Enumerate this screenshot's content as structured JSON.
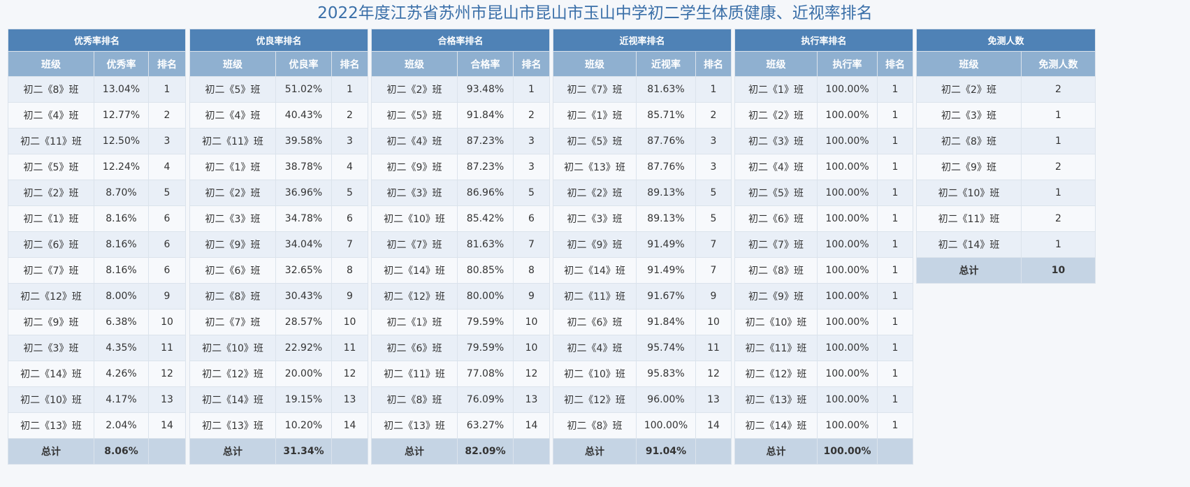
{
  "title": "2022年度江苏省苏州市昆山市昆山市玉山中学初二学生体质健康、近视率排名",
  "tables": [
    {
      "caption": "优秀率排名",
      "headers": [
        "班级",
        "优秀率",
        "排名"
      ],
      "rows": [
        [
          "初二《8》班",
          "13.04%",
          "1"
        ],
        [
          "初二《4》班",
          "12.77%",
          "2"
        ],
        [
          "初二《11》班",
          "12.50%",
          "3"
        ],
        [
          "初二《5》班",
          "12.24%",
          "4"
        ],
        [
          "初二《2》班",
          "8.70%",
          "5"
        ],
        [
          "初二《1》班",
          "8.16%",
          "6"
        ],
        [
          "初二《6》班",
          "8.16%",
          "6"
        ],
        [
          "初二《7》班",
          "8.16%",
          "6"
        ],
        [
          "初二《12》班",
          "8.00%",
          "9"
        ],
        [
          "初二《9》班",
          "6.38%",
          "10"
        ],
        [
          "初二《3》班",
          "4.35%",
          "11"
        ],
        [
          "初二《14》班",
          "4.26%",
          "12"
        ],
        [
          "初二《10》班",
          "4.17%",
          "13"
        ],
        [
          "初二《13》班",
          "2.04%",
          "14"
        ]
      ],
      "total": [
        "总计",
        "8.06%",
        ""
      ]
    },
    {
      "caption": "优良率排名",
      "headers": [
        "班级",
        "优良率",
        "排名"
      ],
      "rows": [
        [
          "初二《5》班",
          "51.02%",
          "1"
        ],
        [
          "初二《4》班",
          "40.43%",
          "2"
        ],
        [
          "初二《11》班",
          "39.58%",
          "3"
        ],
        [
          "初二《1》班",
          "38.78%",
          "4"
        ],
        [
          "初二《2》班",
          "36.96%",
          "5"
        ],
        [
          "初二《3》班",
          "34.78%",
          "6"
        ],
        [
          "初二《9》班",
          "34.04%",
          "7"
        ],
        [
          "初二《6》班",
          "32.65%",
          "8"
        ],
        [
          "初二《8》班",
          "30.43%",
          "9"
        ],
        [
          "初二《7》班",
          "28.57%",
          "10"
        ],
        [
          "初二《10》班",
          "22.92%",
          "11"
        ],
        [
          "初二《12》班",
          "20.00%",
          "12"
        ],
        [
          "初二《14》班",
          "19.15%",
          "13"
        ],
        [
          "初二《13》班",
          "10.20%",
          "14"
        ]
      ],
      "total": [
        "总计",
        "31.34%",
        ""
      ]
    },
    {
      "caption": "合格率排名",
      "headers": [
        "班级",
        "合格率",
        "排名"
      ],
      "rows": [
        [
          "初二《2》班",
          "93.48%",
          "1"
        ],
        [
          "初二《5》班",
          "91.84%",
          "2"
        ],
        [
          "初二《4》班",
          "87.23%",
          "3"
        ],
        [
          "初二《9》班",
          "87.23%",
          "3"
        ],
        [
          "初二《3》班",
          "86.96%",
          "5"
        ],
        [
          "初二《10》班",
          "85.42%",
          "6"
        ],
        [
          "初二《7》班",
          "81.63%",
          "7"
        ],
        [
          "初二《14》班",
          "80.85%",
          "8"
        ],
        [
          "初二《12》班",
          "80.00%",
          "9"
        ],
        [
          "初二《1》班",
          "79.59%",
          "10"
        ],
        [
          "初二《6》班",
          "79.59%",
          "10"
        ],
        [
          "初二《11》班",
          "77.08%",
          "12"
        ],
        [
          "初二《8》班",
          "76.09%",
          "13"
        ],
        [
          "初二《13》班",
          "63.27%",
          "14"
        ]
      ],
      "total": [
        "总计",
        "82.09%",
        ""
      ]
    },
    {
      "caption": "近视率排名",
      "headers": [
        "班级",
        "近视率",
        "排名"
      ],
      "rows": [
        [
          "初二《7》班",
          "81.63%",
          "1"
        ],
        [
          "初二《1》班",
          "85.71%",
          "2"
        ],
        [
          "初二《5》班",
          "87.76%",
          "3"
        ],
        [
          "初二《13》班",
          "87.76%",
          "3"
        ],
        [
          "初二《2》班",
          "89.13%",
          "5"
        ],
        [
          "初二《3》班",
          "89.13%",
          "5"
        ],
        [
          "初二《9》班",
          "91.49%",
          "7"
        ],
        [
          "初二《14》班",
          "91.49%",
          "7"
        ],
        [
          "初二《11》班",
          "91.67%",
          "9"
        ],
        [
          "初二《6》班",
          "91.84%",
          "10"
        ],
        [
          "初二《4》班",
          "95.74%",
          "11"
        ],
        [
          "初二《10》班",
          "95.83%",
          "12"
        ],
        [
          "初二《12》班",
          "96.00%",
          "13"
        ],
        [
          "初二《8》班",
          "100.00%",
          "14"
        ]
      ],
      "total": [
        "总计",
        "91.04%",
        ""
      ]
    },
    {
      "caption": "执行率排名",
      "headers": [
        "班级",
        "执行率",
        "排名"
      ],
      "rows": [
        [
          "初二《1》班",
          "100.00%",
          "1"
        ],
        [
          "初二《2》班",
          "100.00%",
          "1"
        ],
        [
          "初二《3》班",
          "100.00%",
          "1"
        ],
        [
          "初二《4》班",
          "100.00%",
          "1"
        ],
        [
          "初二《5》班",
          "100.00%",
          "1"
        ],
        [
          "初二《6》班",
          "100.00%",
          "1"
        ],
        [
          "初二《7》班",
          "100.00%",
          "1"
        ],
        [
          "初二《8》班",
          "100.00%",
          "1"
        ],
        [
          "初二《9》班",
          "100.00%",
          "1"
        ],
        [
          "初二《10》班",
          "100.00%",
          "1"
        ],
        [
          "初二《11》班",
          "100.00%",
          "1"
        ],
        [
          "初二《12》班",
          "100.00%",
          "1"
        ],
        [
          "初二《13》班",
          "100.00%",
          "1"
        ],
        [
          "初二《14》班",
          "100.00%",
          "1"
        ]
      ],
      "total": [
        "总计",
        "100.00%",
        ""
      ]
    },
    {
      "caption": "免测人数",
      "headers": [
        "班级",
        "免测人数"
      ],
      "rows": [
        [
          "初二《2》班",
          "2"
        ],
        [
          "初二《3》班",
          "1"
        ],
        [
          "初二《8》班",
          "1"
        ],
        [
          "初二《9》班",
          "2"
        ],
        [
          "初二《10》班",
          "1"
        ],
        [
          "初二《11》班",
          "2"
        ],
        [
          "初二《14》班",
          "1"
        ]
      ],
      "total": [
        "总计",
        "10"
      ]
    }
  ],
  "colors": {
    "title": "#3a6fa8",
    "caption_bg": "#4f82b6",
    "header_bg": "#8fb0d0",
    "row_odd_bg": "#e9eff7",
    "row_even_bg": "#f7f9fc",
    "total_bg": "#c5d4e4",
    "page_bg": "#f5f7fa"
  }
}
